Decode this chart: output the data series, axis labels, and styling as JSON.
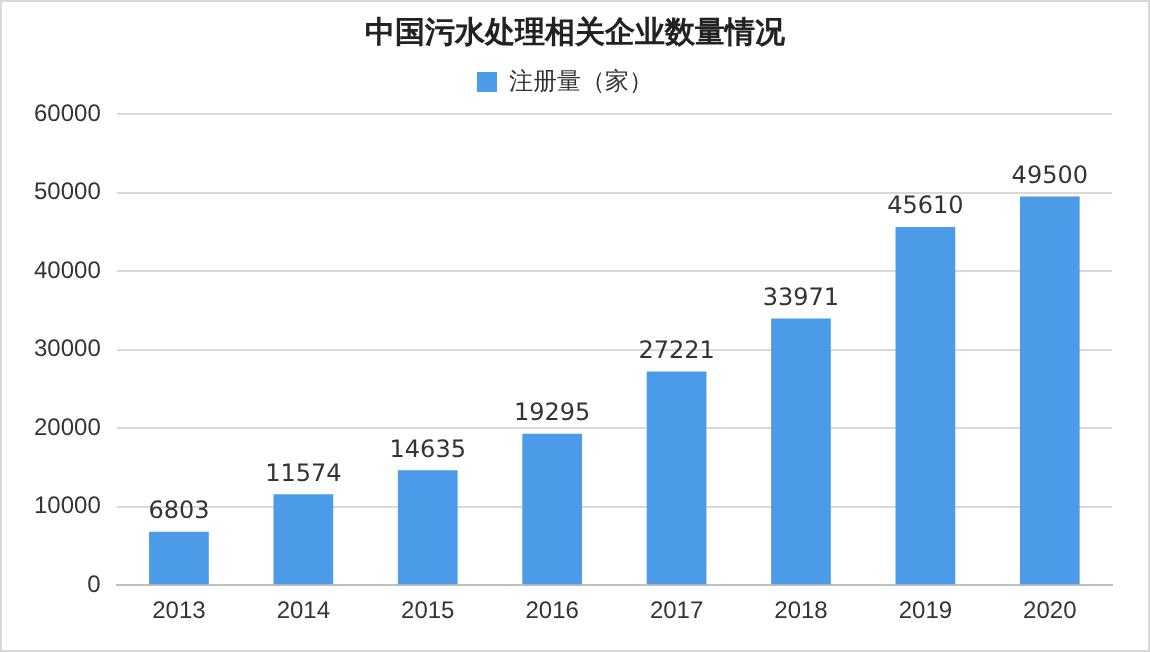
{
  "chart_data": {
    "type": "bar",
    "title": "中国污水处理相关企业数量情况",
    "categories": [
      "2013",
      "2014",
      "2015",
      "2016",
      "2017",
      "2018",
      "2019",
      "2020"
    ],
    "series": [
      {
        "name": "注册量（家）",
        "color": "#4b9be8",
        "values": [
          6803,
          11574,
          14635,
          19295,
          27221,
          33971,
          45610,
          49500
        ]
      }
    ],
    "ylim": [
      0,
      60000
    ],
    "yticks": [
      0,
      10000,
      20000,
      30000,
      40000,
      50000,
      60000
    ],
    "grid": "y",
    "legend": "top",
    "data_labels": true
  }
}
